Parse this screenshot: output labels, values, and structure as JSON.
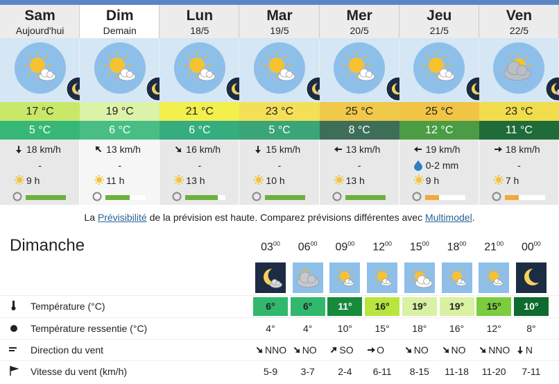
{
  "days": [
    {
      "name": "Sam",
      "date": "Aujourd'hui",
      "max": "17 °C",
      "min": "5 °C",
      "wind": "18 km/h",
      "precip": "-",
      "sun": "9 h"
    },
    {
      "name": "Dim",
      "date": "Demain",
      "max": "19 °C",
      "min": "6 °C",
      "wind": "13 km/h",
      "precip": "-",
      "sun": "11 h"
    },
    {
      "name": "Lun",
      "date": "18/5",
      "max": "21 °C",
      "min": "6 °C",
      "wind": "16 km/h",
      "precip": "-",
      "sun": "13 h"
    },
    {
      "name": "Mar",
      "date": "19/5",
      "max": "23 °C",
      "min": "5 °C",
      "wind": "15 km/h",
      "precip": "-",
      "sun": "10 h"
    },
    {
      "name": "Mer",
      "date": "20/5",
      "max": "25 °C",
      "min": "8 °C",
      "wind": "13 km/h",
      "precip": "-",
      "sun": "13 h"
    },
    {
      "name": "Jeu",
      "date": "21/5",
      "max": "25 °C",
      "min": "12 °C",
      "wind": "19 km/h",
      "precip": "0-2 mm",
      "sun": "9 h"
    },
    {
      "name": "Ven",
      "date": "22/5",
      "max": "23 °C",
      "min": "11 °C",
      "wind": "18 km/h",
      "precip": "-",
      "sun": "7 h"
    }
  ],
  "notice": {
    "prefix": "La",
    "link1": "Prévisibilité",
    "middle": "de la prévision est haute. Comparez prévisions différentes avec",
    "link2": "Multimodel",
    "suffix": "."
  },
  "detail": {
    "title": "Dimanche",
    "hours": [
      {
        "h": "03",
        "m": "00"
      },
      {
        "h": "06",
        "m": "00"
      },
      {
        "h": "09",
        "m": "00"
      },
      {
        "h": "12",
        "m": "00"
      },
      {
        "h": "15",
        "m": "00"
      },
      {
        "h": "18",
        "m": "00"
      },
      {
        "h": "21",
        "m": "00"
      },
      {
        "h": "00",
        "m": "00"
      }
    ],
    "rows": [
      {
        "label": "Température (°C)",
        "values": [
          "6°",
          "6°",
          "11°",
          "16°",
          "19°",
          "19°",
          "15°",
          "10°"
        ]
      },
      {
        "label": "Température ressentie (°C)",
        "values": [
          "4°",
          "4°",
          "10°",
          "15°",
          "18°",
          "16°",
          "12°",
          "8°"
        ]
      },
      {
        "label": "Direction du vent",
        "values": [
          "NNO",
          "NO",
          "SO",
          "O",
          "NO",
          "NO",
          "NNO",
          "N"
        ]
      },
      {
        "label": "Vitesse du vent (km/h)",
        "values": [
          "5-9",
          "3-7",
          "2-4",
          "6-11",
          "8-15",
          "11-18",
          "11-20",
          "7-11"
        ]
      }
    ]
  }
}
